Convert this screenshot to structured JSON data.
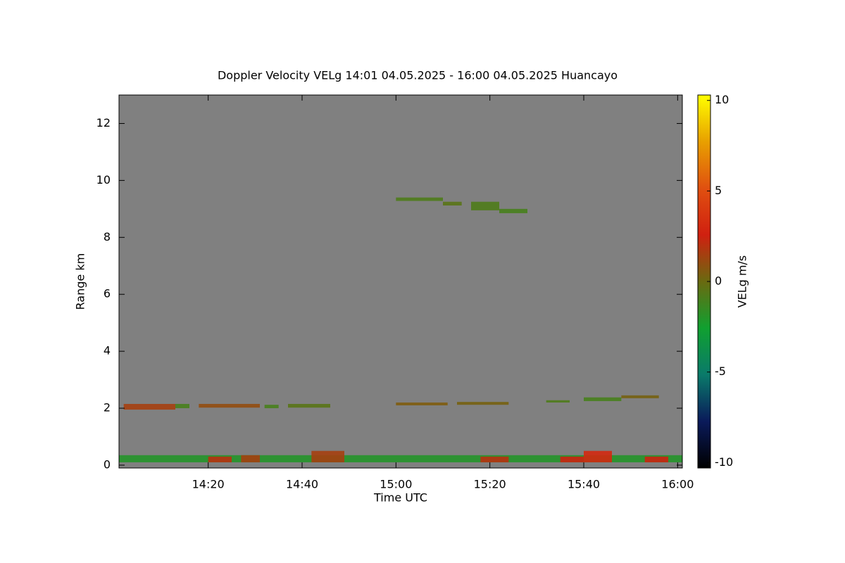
{
  "chart_data": {
    "type": "heatmap",
    "title": "Doppler Velocity VELg   14:01 04.05.2025 - 16:00 04.05.2025 Huancayo",
    "xlabel": "Time UTC",
    "ylabel": "Range km",
    "colorbar_label": "VELg m/s",
    "background": "#808080",
    "xlim": [
      841,
      961
    ],
    "xticks": [
      {
        "value": 860,
        "label": "14:20"
      },
      {
        "value": 880,
        "label": "14:40"
      },
      {
        "value": 900,
        "label": "15:00"
      },
      {
        "value": 920,
        "label": "15:20"
      },
      {
        "value": 940,
        "label": "15:40"
      },
      {
        "value": 960,
        "label": "16:00"
      }
    ],
    "ylim": [
      -0.1,
      13
    ],
    "yticks": [
      0,
      2,
      4,
      6,
      8,
      10,
      12
    ],
    "clim": [
      -10.3,
      10.3
    ],
    "cticks": [
      -10,
      -5,
      0,
      5,
      10
    ],
    "colormap": [
      "#000000",
      "#0a1a5a",
      "#0a7a6a",
      "#10a030",
      "#6a6a10",
      "#d02010",
      "#e05010",
      "#e8a000",
      "#ffff00"
    ],
    "echoes": [
      {
        "x": [
          841,
          961
        ],
        "range": [
          0.1,
          0.35
        ],
        "value": -2
      },
      {
        "x": [
          860,
          865
        ],
        "range": [
          0.1,
          0.3
        ],
        "value": 2
      },
      {
        "x": [
          867,
          871
        ],
        "range": [
          0.1,
          0.35
        ],
        "value": 1.5
      },
      {
        "x": [
          882,
          889
        ],
        "range": [
          0.1,
          0.5
        ],
        "value": 1.5
      },
      {
        "x": [
          918,
          924
        ],
        "range": [
          0.1,
          0.3
        ],
        "value": 2
      },
      {
        "x": [
          935,
          940
        ],
        "range": [
          0.1,
          0.3
        ],
        "value": 2.5
      },
      {
        "x": [
          940,
          946
        ],
        "range": [
          0.1,
          0.5
        ],
        "value": 3
      },
      {
        "x": [
          953,
          958
        ],
        "range": [
          0.1,
          0.3
        ],
        "value": 2.5
      },
      {
        "x": [
          842,
          853
        ],
        "range": [
          1.95,
          2.15
        ],
        "value": 1.5
      },
      {
        "x": [
          853,
          856
        ],
        "range": [
          2.0,
          2.15
        ],
        "value": -1
      },
      {
        "x": [
          858,
          871
        ],
        "range": [
          2.02,
          2.15
        ],
        "value": 1
      },
      {
        "x": [
          872,
          875
        ],
        "range": [
          2.0,
          2.12
        ],
        "value": -1
      },
      {
        "x": [
          877,
          886
        ],
        "range": [
          2.02,
          2.15
        ],
        "value": -0.5
      },
      {
        "x": [
          900,
          911
        ],
        "range": [
          2.1,
          2.2
        ],
        "value": 0.5
      },
      {
        "x": [
          913,
          924
        ],
        "range": [
          2.12,
          2.22
        ],
        "value": 0.3
      },
      {
        "x": [
          932,
          937
        ],
        "range": [
          2.2,
          2.28
        ],
        "value": -0.8
      },
      {
        "x": [
          940,
          948
        ],
        "range": [
          2.25,
          2.38
        ],
        "value": -1
      },
      {
        "x": [
          948,
          956
        ],
        "range": [
          2.35,
          2.45
        ],
        "value": 0.3
      },
      {
        "x": [
          900,
          910
        ],
        "range": [
          9.28,
          9.4
        ],
        "value": -0.8
      },
      {
        "x": [
          910,
          914
        ],
        "range": [
          9.12,
          9.25
        ],
        "value": -0.5
      },
      {
        "x": [
          916,
          922
        ],
        "range": [
          8.95,
          9.25
        ],
        "value": -0.8
      },
      {
        "x": [
          922,
          928
        ],
        "range": [
          8.85,
          9.0
        ],
        "value": -1
      }
    ]
  }
}
